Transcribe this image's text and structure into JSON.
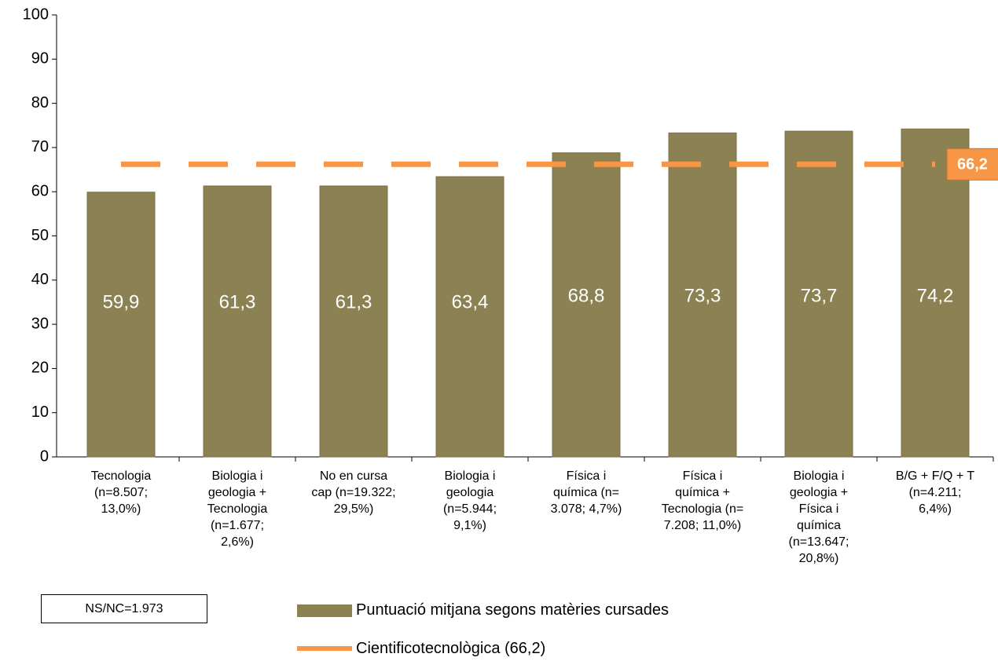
{
  "chart_data": {
    "type": "bar",
    "categories": [
      "Tecnologia\n(n=8.507;\n13,0%)",
      "Biologia i\ngeologia +\nTecnologia\n(n=1.677;\n2,6%)",
      "No en cursa\ncap (n=19.322;\n29,5%)",
      "Biologia i\ngeologia\n(n=5.944;\n9,1%)",
      "Física i\nquímica (n=\n3.078; 4,7%)",
      "Física i\nquímica +\nTecnologia (n=\n7.208; 11,0%)",
      "Biologia i\ngeologia +\nFísica i\nquímica\n(n=13.647;\n20,8%)",
      "B/G + F/Q + T\n(n=4.211;\n6,4%)"
    ],
    "series": [
      {
        "name": "Puntuació mitjana segons matèries cursades",
        "color": "#8b8152",
        "values": [
          59.9,
          61.3,
          61.3,
          63.4,
          68.8,
          73.3,
          73.7,
          74.2
        ],
        "value_labels": [
          "59,9",
          "61,3",
          "61,3",
          "63,4",
          "68,8",
          "73,3",
          "73,7",
          "74,2"
        ]
      }
    ],
    "reference_line": {
      "name": "Cientificotecnològica (66,2)",
      "color": "#f79646",
      "value": 66.2,
      "value_label": "66,2"
    },
    "ylim": [
      0,
      100
    ],
    "yticks": [
      0,
      10,
      20,
      30,
      40,
      50,
      60,
      70,
      80,
      90,
      100
    ],
    "annotation": "NS/NC=1.973"
  }
}
